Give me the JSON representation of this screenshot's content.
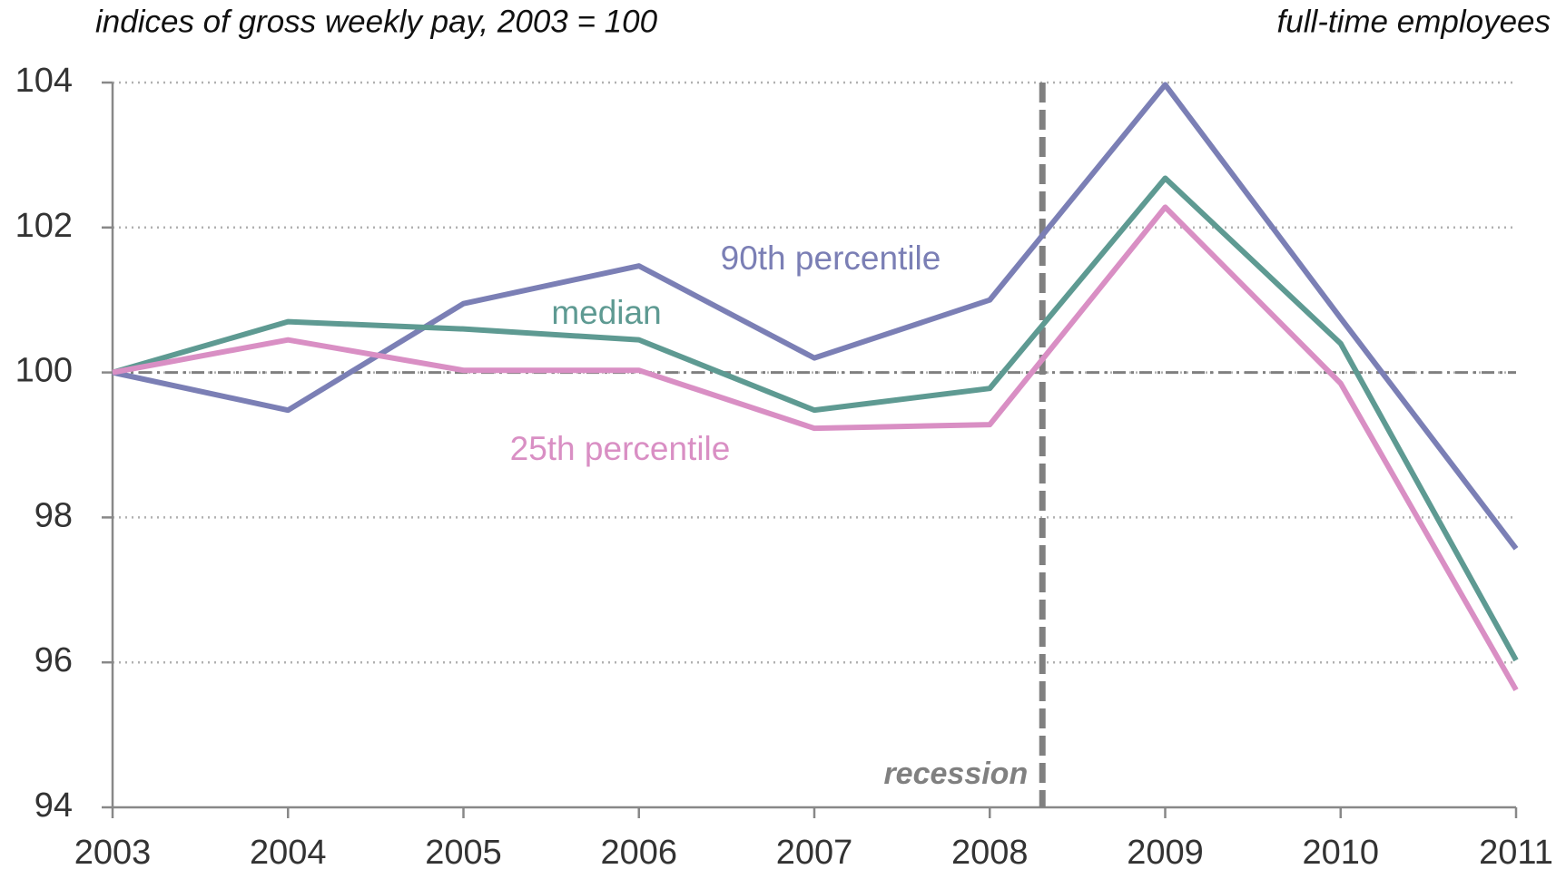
{
  "chart_data": {
    "type": "line",
    "title": "indices of gross weekly pay, 2003 = 100",
    "subtitle": "full-time employees",
    "x": [
      2003,
      2004,
      2005,
      2006,
      2007,
      2008,
      2009,
      2010,
      2011
    ],
    "xlim": [
      2003,
      2011
    ],
    "xticks": [
      2003,
      2004,
      2005,
      2006,
      2007,
      2008,
      2009,
      2010,
      2011
    ],
    "ylim": [
      94,
      104
    ],
    "yticks": [
      94,
      96,
      98,
      100,
      102,
      104
    ],
    "grid": true,
    "reference_line": 100,
    "annotation": {
      "text": "recession",
      "x": 2008.3
    },
    "series": [
      {
        "name": "90th percentile",
        "color": "#7b7fb5",
        "values": [
          100,
          99.48,
          100.95,
          101.47,
          100.2,
          101.0,
          103.97,
          100.75,
          97.57
        ]
      },
      {
        "name": "median",
        "color": "#5e9a92",
        "values": [
          100,
          100.7,
          100.6,
          100.45,
          99.48,
          99.78,
          102.68,
          100.4,
          96.03
        ]
      },
      {
        "name": "25th percentile",
        "color": "#d98fc4",
        "values": [
          100,
          100.45,
          100.03,
          100.03,
          99.23,
          99.28,
          102.28,
          99.85,
          95.62
        ]
      }
    ]
  }
}
